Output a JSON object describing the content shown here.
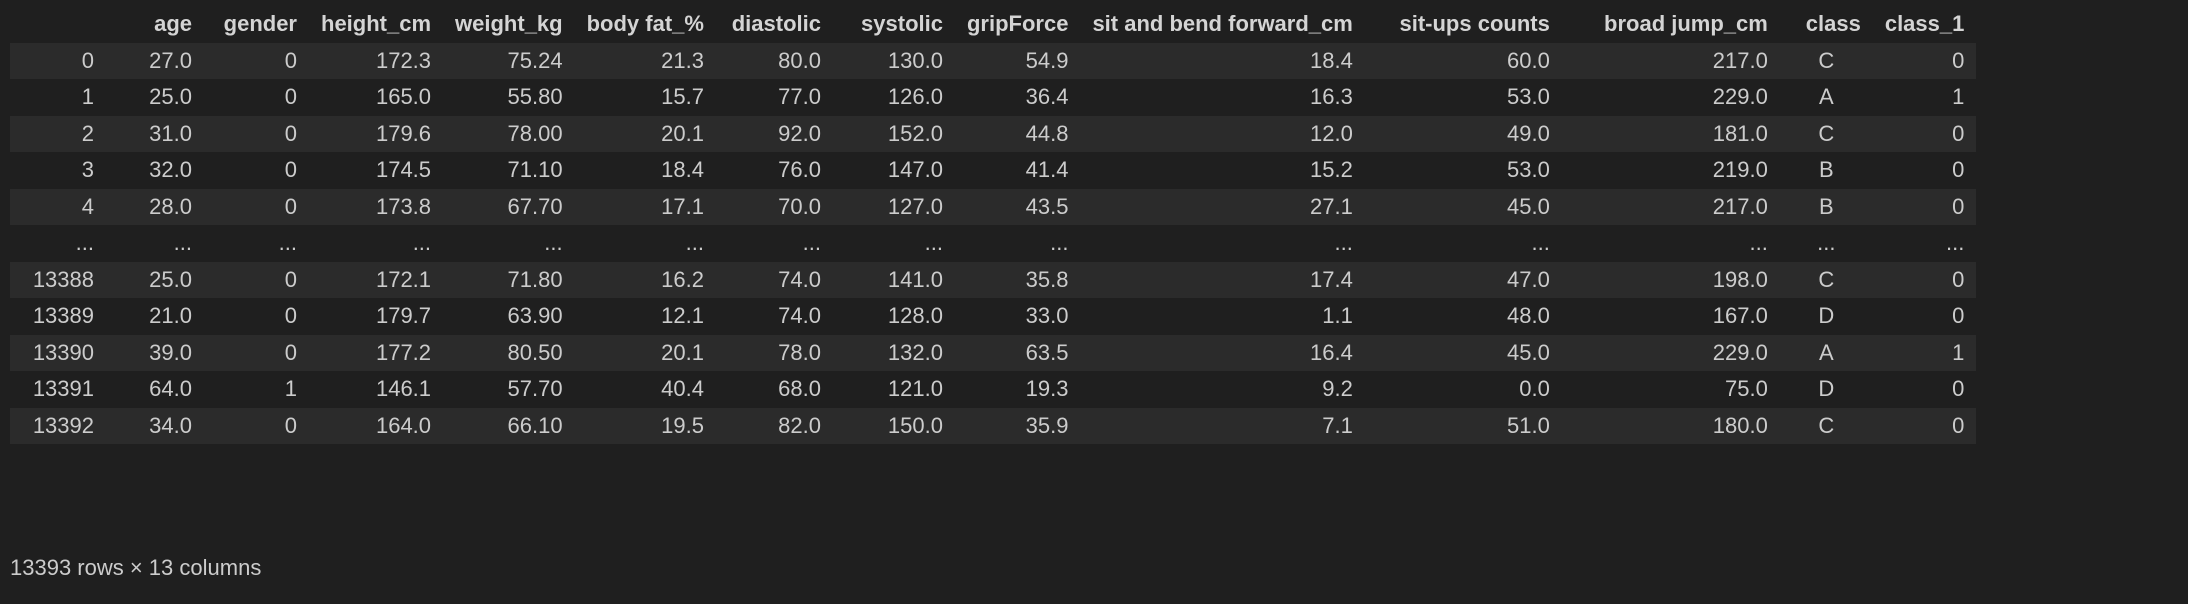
{
  "table": {
    "columns": [
      "",
      "age",
      "gender",
      "height_cm",
      "weight_kg",
      "body fat_%",
      "diastolic",
      "systolic",
      "gripForce",
      "sit and bend forward_cm",
      "sit-ups counts",
      "broad jump_cm",
      "class",
      "class_1"
    ],
    "rows": [
      {
        "index": "0",
        "cells": [
          "27.0",
          "0",
          "172.3",
          "75.24",
          "21.3",
          "80.0",
          "130.0",
          "54.9",
          "18.4",
          "60.0",
          "217.0",
          "C",
          "0"
        ]
      },
      {
        "index": "1",
        "cells": [
          "25.0",
          "0",
          "165.0",
          "55.80",
          "15.7",
          "77.0",
          "126.0",
          "36.4",
          "16.3",
          "53.0",
          "229.0",
          "A",
          "1"
        ]
      },
      {
        "index": "2",
        "cells": [
          "31.0",
          "0",
          "179.6",
          "78.00",
          "20.1",
          "92.0",
          "152.0",
          "44.8",
          "12.0",
          "49.0",
          "181.0",
          "C",
          "0"
        ]
      },
      {
        "index": "3",
        "cells": [
          "32.0",
          "0",
          "174.5",
          "71.10",
          "18.4",
          "76.0",
          "147.0",
          "41.4",
          "15.2",
          "53.0",
          "219.0",
          "B",
          "0"
        ]
      },
      {
        "index": "4",
        "cells": [
          "28.0",
          "0",
          "173.8",
          "67.70",
          "17.1",
          "70.0",
          "127.0",
          "43.5",
          "27.1",
          "45.0",
          "217.0",
          "B",
          "0"
        ]
      },
      {
        "index": "...",
        "cells": [
          "...",
          "...",
          "...",
          "...",
          "...",
          "...",
          "...",
          "...",
          "...",
          "...",
          "...",
          "...",
          "..."
        ]
      },
      {
        "index": "13388",
        "cells": [
          "25.0",
          "0",
          "172.1",
          "71.80",
          "16.2",
          "74.0",
          "141.0",
          "35.8",
          "17.4",
          "47.0",
          "198.0",
          "C",
          "0"
        ]
      },
      {
        "index": "13389",
        "cells": [
          "21.0",
          "0",
          "179.7",
          "63.90",
          "12.1",
          "74.0",
          "128.0",
          "33.0",
          "1.1",
          "48.0",
          "167.0",
          "D",
          "0"
        ]
      },
      {
        "index": "13390",
        "cells": [
          "39.0",
          "0",
          "177.2",
          "80.50",
          "20.1",
          "78.0",
          "132.0",
          "63.5",
          "16.4",
          "45.0",
          "229.0",
          "A",
          "1"
        ]
      },
      {
        "index": "13391",
        "cells": [
          "64.0",
          "1",
          "146.1",
          "57.70",
          "40.4",
          "68.0",
          "121.0",
          "19.3",
          "9.2",
          "0.0",
          "75.0",
          "D",
          "0"
        ]
      },
      {
        "index": "13392",
        "cells": [
          "34.0",
          "0",
          "164.0",
          "66.10",
          "19.5",
          "82.0",
          "150.0",
          "35.9",
          "7.1",
          "51.0",
          "180.0",
          "C",
          "0"
        ]
      }
    ]
  },
  "caption": "13393 rows × 13 columns"
}
